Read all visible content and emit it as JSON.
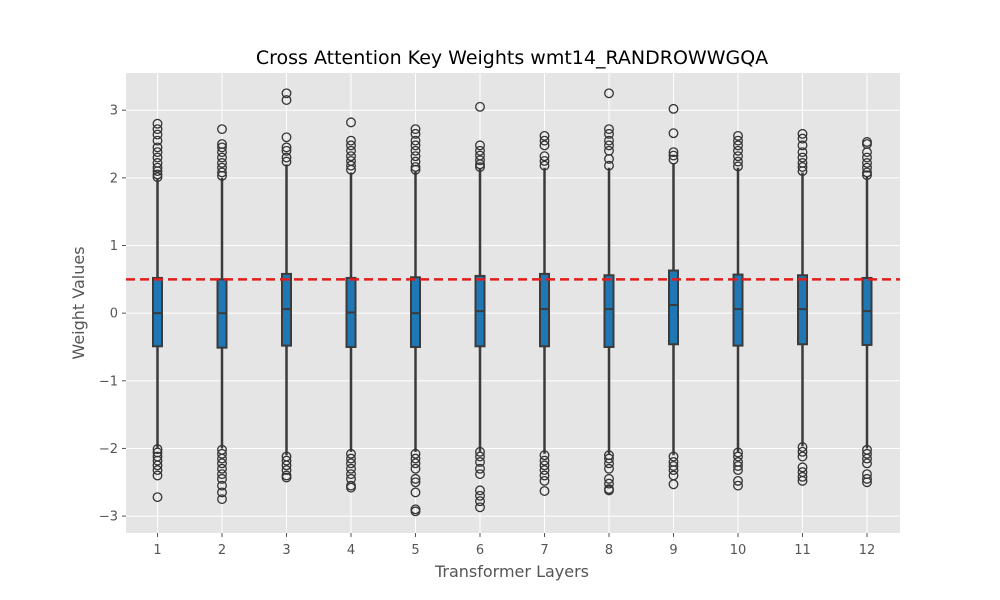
{
  "chart_data": {
    "type": "box",
    "title": "Cross Attention Key Weights wmt14_RANDROWWGQA",
    "xlabel": "Transformer Layers",
    "ylabel": "Weight Values",
    "categories": [
      "1",
      "2",
      "3",
      "4",
      "5",
      "6",
      "7",
      "8",
      "9",
      "10",
      "11",
      "12"
    ],
    "ylim": [
      -3.25,
      3.55
    ],
    "yticks": [
      -3,
      -2,
      -1,
      0,
      1,
      2,
      3
    ],
    "ytick_labels": [
      "−3",
      "−2",
      "−1",
      "0",
      "1",
      "2",
      "3"
    ],
    "grid": true,
    "reference_line": {
      "y": 0.5,
      "color": "#e01e1e",
      "style": "dashed"
    },
    "colors": {
      "box_fill": "#1f77b4",
      "box_edge": "#3b3b3b",
      "plot_bg": "#e5e5e5",
      "grid": "#ffffff"
    },
    "boxes": [
      {
        "q1": -0.49,
        "median": 0.0,
        "q3": 0.52,
        "whisker_low": -1.99,
        "whisker_high": 1.99
      },
      {
        "q1": -0.51,
        "median": 0.0,
        "q3": 0.5,
        "whisker_low": -2.0,
        "whisker_high": 2.0
      },
      {
        "q1": -0.48,
        "median": 0.06,
        "q3": 0.58,
        "whisker_low": -2.1,
        "whisker_high": 2.2
      },
      {
        "q1": -0.5,
        "median": 0.01,
        "q3": 0.52,
        "whisker_low": -2.05,
        "whisker_high": 2.08
      },
      {
        "q1": -0.5,
        "median": 0.0,
        "q3": 0.53,
        "whisker_low": -2.05,
        "whisker_high": 2.1
      },
      {
        "q1": -0.49,
        "median": 0.03,
        "q3": 0.55,
        "whisker_low": -2.05,
        "whisker_high": 2.14
      },
      {
        "q1": -0.49,
        "median": 0.06,
        "q3": 0.58,
        "whisker_low": -2.08,
        "whisker_high": 2.15
      },
      {
        "q1": -0.5,
        "median": 0.06,
        "q3": 0.56,
        "whisker_low": -2.08,
        "whisker_high": 2.15
      },
      {
        "q1": -0.46,
        "median": 0.12,
        "q3": 0.63,
        "whisker_low": -2.1,
        "whisker_high": 2.22
      },
      {
        "q1": -0.48,
        "median": 0.06,
        "q3": 0.57,
        "whisker_low": -2.05,
        "whisker_high": 2.15
      },
      {
        "q1": -0.46,
        "median": 0.06,
        "q3": 0.56,
        "whisker_low": -1.97,
        "whisker_high": 2.08
      },
      {
        "q1": -0.47,
        "median": 0.03,
        "q3": 0.52,
        "whisker_low": -2.0,
        "whisker_high": 2.03
      }
    ],
    "outliers": [
      [
        2.8,
        2.72,
        2.64,
        2.55,
        2.45,
        2.38,
        2.3,
        2.22,
        2.15,
        2.1,
        2.05,
        2.01,
        -2.01,
        -2.06,
        -2.12,
        -2.18,
        -2.25,
        -2.32,
        -2.4,
        -2.72
      ],
      [
        2.72,
        2.5,
        2.45,
        2.38,
        2.3,
        2.22,
        2.15,
        2.08,
        2.03,
        -2.02,
        -2.08,
        -2.15,
        -2.22,
        -2.3,
        -2.38,
        -2.45,
        -2.55,
        -2.65,
        -2.75
      ],
      [
        3.25,
        3.15,
        2.6,
        2.45,
        2.4,
        2.3,
        2.24,
        -2.12,
        -2.18,
        -2.25,
        -2.32,
        -2.4,
        -2.43
      ],
      [
        2.82,
        2.55,
        2.48,
        2.4,
        2.32,
        2.25,
        2.18,
        2.12,
        -2.08,
        -2.15,
        -2.22,
        -2.3,
        -2.38,
        -2.45,
        -2.55,
        -2.58
      ],
      [
        2.72,
        2.65,
        2.55,
        2.48,
        2.4,
        2.32,
        2.24,
        2.16,
        2.12,
        -2.08,
        -2.15,
        -2.22,
        -2.3,
        -2.45,
        -2.5,
        -2.65,
        -2.9,
        -2.93
      ],
      [
        3.05,
        2.48,
        2.4,
        2.33,
        2.26,
        2.2,
        2.16,
        -2.05,
        -2.12,
        -2.2,
        -2.3,
        -2.38,
        -2.62,
        -2.7,
        -2.78,
        -2.87
      ],
      [
        2.62,
        2.55,
        2.48,
        2.32,
        2.25,
        2.18,
        -2.1,
        -2.18,
        -2.25,
        -2.32,
        -2.4,
        -2.48,
        -2.63
      ],
      [
        3.25,
        2.72,
        2.65,
        2.55,
        2.48,
        2.4,
        2.28,
        2.18,
        -2.1,
        -2.15,
        -2.22,
        -2.3,
        -2.45,
        -2.52,
        -2.6,
        -2.62
      ],
      [
        3.02,
        2.66,
        2.38,
        2.33,
        2.27,
        -2.12,
        -2.2,
        -2.26,
        -2.32,
        -2.4,
        -2.53
      ],
      [
        2.62,
        2.55,
        2.48,
        2.4,
        2.32,
        2.24,
        2.17,
        -2.06,
        -2.12,
        -2.2,
        -2.26,
        -2.32,
        -2.48,
        -2.55
      ],
      [
        2.65,
        2.58,
        2.48,
        2.38,
        2.3,
        2.22,
        2.16,
        2.1,
        -1.98,
        -2.05,
        -2.12,
        -2.28,
        -2.35,
        -2.42,
        -2.48
      ],
      [
        2.53,
        2.5,
        2.38,
        2.3,
        2.22,
        2.15,
        2.08,
        2.04,
        -2.02,
        -2.08,
        -2.15,
        -2.22,
        -2.38,
        -2.45,
        -2.5
      ]
    ]
  }
}
